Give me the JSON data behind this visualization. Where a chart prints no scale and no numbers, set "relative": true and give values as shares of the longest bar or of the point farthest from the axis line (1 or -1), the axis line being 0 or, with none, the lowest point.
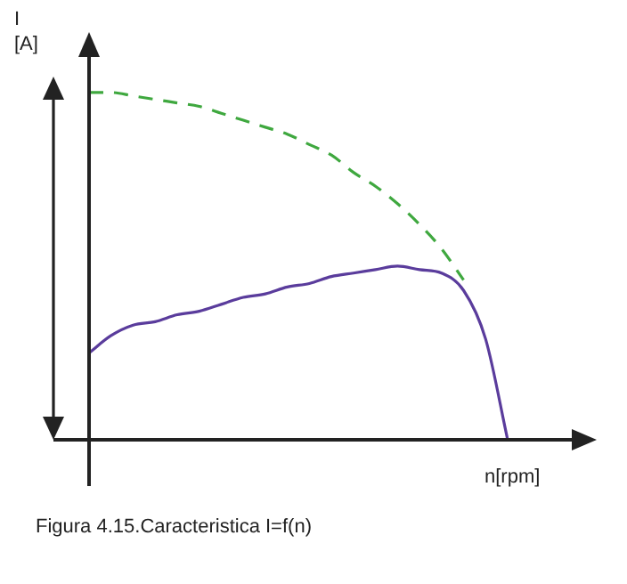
{
  "chart_data": {
    "type": "line",
    "relative": true,
    "ylabel": "I\n[A]",
    "xlabel": "n[rpm]",
    "annotations": [
      "Figura 4.15.Caracteristica I=f(n)"
    ],
    "marker": "none",
    "categories": [
      null,
      null,
      null,
      null,
      null,
      null,
      null,
      null,
      null,
      null,
      null,
      null,
      null,
      null,
      null,
      null,
      null,
      null,
      null,
      null
    ],
    "series": [
      {
        "color": "#3fa83f",
        "line_style": "dashed",
        "values": [
          1.0,
          1.0,
          0.99,
          0.98,
          0.97,
          0.96,
          0.94,
          0.92,
          0.9,
          0.88,
          0.85,
          0.82,
          0.77,
          0.73,
          0.68,
          0.62,
          0.55,
          0.46,
          null,
          null
        ]
      },
      {
        "color": "#5a3c9c",
        "line_style": "solid",
        "values": [
          0.25,
          0.3,
          0.33,
          0.34,
          0.36,
          0.37,
          0.39,
          0.41,
          0.42,
          0.44,
          0.45,
          0.47,
          0.48,
          0.49,
          0.5,
          0.49,
          0.48,
          0.43,
          0.29,
          0
        ]
      }
    ]
  }
}
